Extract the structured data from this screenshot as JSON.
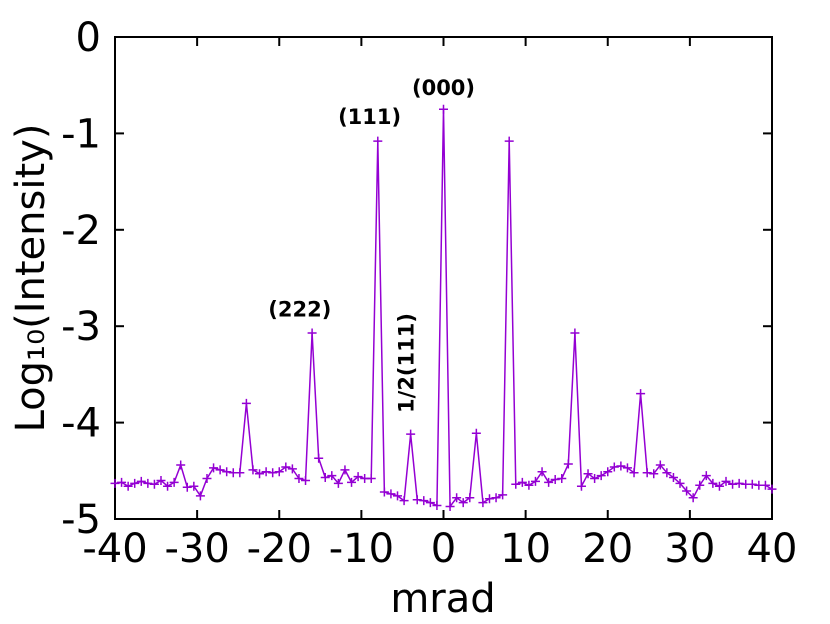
{
  "chart_data": {
    "type": "line",
    "xlabel": "mrad",
    "ylabel": "Log₁₀(Intensity)",
    "xlim": [
      -40,
      40
    ],
    "ylim": [
      -5,
      0
    ],
    "xticks": [
      "-40",
      "-30",
      "-20",
      "-10",
      "0",
      "10",
      "20",
      "30",
      "40"
    ],
    "yticks": [
      "0",
      "-1",
      "-2",
      "-3",
      "-4",
      "-5"
    ],
    "grid": false,
    "color": "#9400d3",
    "marker": "plus",
    "annotations": [
      {
        "text": "(000)",
        "x": 0,
        "y": -0.6
      },
      {
        "text": "(111)",
        "x": -9,
        "y": -0.9
      },
      {
        "text": "(222)",
        "x": -17.5,
        "y": -2.9
      },
      {
        "text": "1/2(111)",
        "x": -4.5,
        "y": -3.9,
        "rotate": true
      }
    ],
    "series": [
      {
        "x": [
          -40,
          -39.2,
          -38.4,
          -37.6,
          -36.8,
          -36,
          -35.2,
          -34.4,
          -33.6,
          -32.8,
          -32,
          -31.2,
          -30.4,
          -29.6,
          -28.8,
          -28,
          -27.2,
          -26.4,
          -25.6,
          -24.8,
          -24,
          -23.2,
          -22.4,
          -21.6,
          -20.8,
          -20,
          -19.2,
          -18.4,
          -17.6,
          -16.8,
          -16,
          -15.2,
          -14.4,
          -13.6,
          -12.8,
          -12,
          -11.2,
          -10.4,
          -9.6,
          -8.8,
          -8,
          -7.2,
          -6.4,
          -5.6,
          -4.8,
          -4,
          -3.2,
          -2.4,
          -1.6,
          -0.8,
          0,
          0.8,
          1.6,
          2.4,
          3.2,
          4,
          4.8,
          5.6,
          6.4,
          7.2,
          8,
          8.8,
          9.6,
          10.4,
          11.2,
          12,
          12.8,
          13.6,
          14.4,
          15.2,
          16,
          16.8,
          17.6,
          18.4,
          19.2,
          20,
          20.8,
          21.6,
          22.4,
          23.2,
          24,
          24.8,
          25.6,
          26.4,
          27.2,
          28,
          28.8,
          29.6,
          30.4,
          31.2,
          32,
          32.8,
          33.6,
          34.4,
          35.2,
          36,
          36.8,
          37.6,
          38.4,
          39.2,
          40
        ],
        "values": [
          -4.63,
          -4.62,
          -4.66,
          -4.63,
          -4.61,
          -4.63,
          -4.64,
          -4.6,
          -4.66,
          -4.62,
          -4.44,
          -4.67,
          -4.66,
          -4.76,
          -4.58,
          -4.47,
          -4.49,
          -4.51,
          -4.52,
          -4.52,
          -3.8,
          -4.49,
          -4.53,
          -4.51,
          -4.52,
          -4.51,
          -4.46,
          -4.48,
          -4.58,
          -4.6,
          -3.07,
          -4.37,
          -4.57,
          -4.55,
          -4.63,
          -4.49,
          -4.62,
          -4.56,
          -4.58,
          -4.58,
          -1.08,
          -4.72,
          -4.74,
          -4.76,
          -4.81,
          -4.12,
          -4.8,
          -4.81,
          -4.83,
          -4.86,
          -0.75,
          -4.87,
          -4.78,
          -4.83,
          -4.78,
          -4.11,
          -4.83,
          -4.79,
          -4.78,
          -4.75,
          -1.08,
          -4.64,
          -4.62,
          -4.65,
          -4.61,
          -4.51,
          -4.62,
          -4.59,
          -4.58,
          -4.43,
          -3.07,
          -4.66,
          -4.53,
          -4.58,
          -4.55,
          -4.51,
          -4.46,
          -4.45,
          -4.47,
          -4.52,
          -3.7,
          -4.52,
          -4.53,
          -4.44,
          -4.52,
          -4.57,
          -4.63,
          -4.71,
          -4.78,
          -4.65,
          -4.55,
          -4.63,
          -4.66,
          -4.61,
          -4.64,
          -4.63,
          -4.64,
          -4.64,
          -4.65,
          -4.65,
          -4.69
        ]
      }
    ]
  }
}
